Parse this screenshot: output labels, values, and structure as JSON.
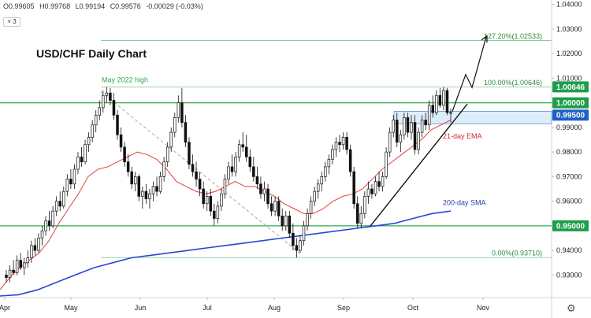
{
  "header": {
    "open": "O0.99605",
    "high": "H0.99768",
    "low": "L0.99194",
    "close": "C0.99576",
    "change": "-0.00029 (-0.03%)",
    "indicator_count": "3"
  },
  "chart_data": {
    "type": "candlestick",
    "title": "USD/CHF Daily Chart",
    "ylim": [
      0.9215,
      1.0405
    ],
    "y_ticks": [
      "0.93000",
      "0.94000",
      "0.95000",
      "0.96000",
      "0.97000",
      "0.98000",
      "0.99000",
      "1.00000",
      "1.01000",
      "1.02000",
      "1.03000",
      "1.04000"
    ],
    "x_ticks": [
      "Apr",
      "May",
      "Jun",
      "Jul",
      "Aug",
      "Sep",
      "Oct",
      "Nov"
    ],
    "price_tags": [
      {
        "label": "1.00646",
        "value": 1.00646,
        "color": "#1e9e4a"
      },
      {
        "label": "1.00000",
        "value": 1.0,
        "color": "#1e9e4a"
      },
      {
        "label": "0.99500",
        "value": 0.995,
        "color": "#1f5fc6"
      },
      {
        "label": "0.95000",
        "value": 0.95,
        "color": "#1e9e4a"
      }
    ],
    "horizontal_levels": [
      {
        "value": 1.0,
        "color": "#2ca84e"
      },
      {
        "value": 0.95,
        "color": "#2ca84e"
      }
    ],
    "fibonacci": [
      {
        "label": "127.20%(1.02533)",
        "value": 1.02533
      },
      {
        "label": "100.00%(1.00646)",
        "value": 1.00646
      },
      {
        "label": "0.00%(0.93710)",
        "value": 0.9371
      }
    ],
    "annotations": [
      {
        "text": "May 2022 high",
        "color": "#2ca84e"
      },
      {
        "text": "21-day EMA",
        "color": "#d62728"
      },
      {
        "text": "200-day SMA",
        "color": "#1f3fb0"
      }
    ],
    "resistance_zone": [
      0.9915,
      0.9965
    ],
    "candles": [
      [
        0.93,
        0.932,
        0.927,
        0.929
      ],
      [
        0.929,
        0.934,
        0.927,
        0.932
      ],
      [
        0.932,
        0.936,
        0.93,
        0.931
      ],
      [
        0.931,
        0.938,
        0.93,
        0.936
      ],
      [
        0.936,
        0.939,
        0.932,
        0.933
      ],
      [
        0.933,
        0.937,
        0.93,
        0.935
      ],
      [
        0.935,
        0.94,
        0.933,
        0.937
      ],
      [
        0.937,
        0.944,
        0.935,
        0.942
      ],
      [
        0.942,
        0.945,
        0.938,
        0.94
      ],
      [
        0.94,
        0.947,
        0.939,
        0.945
      ],
      [
        0.945,
        0.95,
        0.942,
        0.948
      ],
      [
        0.948,
        0.954,
        0.946,
        0.952
      ],
      [
        0.952,
        0.956,
        0.948,
        0.95
      ],
      [
        0.95,
        0.958,
        0.949,
        0.956
      ],
      [
        0.956,
        0.962,
        0.954,
        0.96
      ],
      [
        0.96,
        0.964,
        0.956,
        0.958
      ],
      [
        0.958,
        0.966,
        0.957,
        0.964
      ],
      [
        0.964,
        0.971,
        0.962,
        0.969
      ],
      [
        0.969,
        0.973,
        0.965,
        0.967
      ],
      [
        0.967,
        0.975,
        0.965,
        0.973
      ],
      [
        0.973,
        0.98,
        0.971,
        0.978
      ],
      [
        0.978,
        0.982,
        0.974,
        0.976
      ],
      [
        0.976,
        0.985,
        0.975,
        0.983
      ],
      [
        0.983,
        0.988,
        0.98,
        0.986
      ],
      [
        0.986,
        0.993,
        0.984,
        0.991
      ],
      [
        0.991,
        0.997,
        0.988,
        0.995
      ],
      [
        0.995,
        1.001,
        0.993,
        0.998
      ],
      [
        0.998,
        1.005,
        0.996,
        1.003
      ],
      [
        1.003,
        1.0064,
        1.0,
        1.004
      ],
      [
        1.004,
        1.006,
        0.999,
        1.001
      ],
      [
        1.001,
        1.004,
        0.993,
        0.995
      ],
      [
        0.995,
        0.997,
        0.985,
        0.987
      ],
      [
        0.987,
        0.99,
        0.98,
        0.982
      ],
      [
        0.982,
        0.984,
        0.974,
        0.976
      ],
      [
        0.976,
        0.979,
        0.97,
        0.972
      ],
      [
        0.972,
        0.974,
        0.965,
        0.967
      ],
      [
        0.967,
        0.972,
        0.964,
        0.97
      ],
      [
        0.97,
        0.971,
        0.96,
        0.962
      ],
      [
        0.962,
        0.966,
        0.957,
        0.964
      ],
      [
        0.964,
        0.967,
        0.959,
        0.961
      ],
      [
        0.961,
        0.965,
        0.957,
        0.963
      ],
      [
        0.963,
        0.968,
        0.96,
        0.966
      ],
      [
        0.966,
        0.97,
        0.962,
        0.964
      ],
      [
        0.964,
        0.972,
        0.963,
        0.97
      ],
      [
        0.97,
        0.978,
        0.968,
        0.976
      ],
      [
        0.976,
        0.984,
        0.974,
        0.982
      ],
      [
        0.982,
        0.99,
        0.98,
        0.988
      ],
      [
        0.988,
        0.996,
        0.986,
        0.994
      ],
      [
        0.994,
        1.003,
        0.992,
        1.0
      ],
      [
        1.0,
        1.006,
        0.99,
        0.992
      ],
      [
        0.992,
        0.995,
        0.982,
        0.984
      ],
      [
        0.984,
        0.986,
        0.973,
        0.975
      ],
      [
        0.975,
        0.979,
        0.97,
        0.972
      ],
      [
        0.972,
        0.976,
        0.966,
        0.969
      ],
      [
        0.969,
        0.972,
        0.962,
        0.965
      ],
      [
        0.965,
        0.968,
        0.957,
        0.959
      ],
      [
        0.959,
        0.964,
        0.956,
        0.962
      ],
      [
        0.962,
        0.965,
        0.954,
        0.956
      ],
      [
        0.956,
        0.959,
        0.95,
        0.953
      ],
      [
        0.953,
        0.96,
        0.951,
        0.958
      ],
      [
        0.958,
        0.965,
        0.956,
        0.963
      ],
      [
        0.963,
        0.971,
        0.961,
        0.969
      ],
      [
        0.969,
        0.976,
        0.967,
        0.974
      ],
      [
        0.974,
        0.979,
        0.97,
        0.972
      ],
      [
        0.972,
        0.98,
        0.97,
        0.978
      ],
      [
        0.978,
        0.985,
        0.976,
        0.983
      ],
      [
        0.983,
        0.988,
        0.98,
        0.982
      ],
      [
        0.982,
        0.987,
        0.976,
        0.978
      ],
      [
        0.978,
        0.981,
        0.972,
        0.974
      ],
      [
        0.974,
        0.978,
        0.968,
        0.97
      ],
      [
        0.97,
        0.974,
        0.965,
        0.967
      ],
      [
        0.967,
        0.97,
        0.961,
        0.963
      ],
      [
        0.963,
        0.968,
        0.96,
        0.965
      ],
      [
        0.965,
        0.967,
        0.957,
        0.959
      ],
      [
        0.959,
        0.962,
        0.954,
        0.956
      ],
      [
        0.956,
        0.962,
        0.954,
        0.96
      ],
      [
        0.96,
        0.962,
        0.952,
        0.954
      ],
      [
        0.954,
        0.957,
        0.948,
        0.95
      ],
      [
        0.95,
        0.956,
        0.948,
        0.954
      ],
      [
        0.954,
        0.956,
        0.945,
        0.947
      ],
      [
        0.947,
        0.951,
        0.94,
        0.942
      ],
      [
        0.942,
        0.945,
        0.9371,
        0.94
      ],
      [
        0.94,
        0.946,
        0.939,
        0.944
      ],
      [
        0.944,
        0.952,
        0.942,
        0.95
      ],
      [
        0.95,
        0.957,
        0.948,
        0.955
      ],
      [
        0.955,
        0.962,
        0.953,
        0.96
      ],
      [
        0.96,
        0.966,
        0.958,
        0.964
      ],
      [
        0.964,
        0.969,
        0.961,
        0.967
      ],
      [
        0.967,
        0.972,
        0.964,
        0.97
      ],
      [
        0.97,
        0.976,
        0.968,
        0.974
      ],
      [
        0.974,
        0.979,
        0.971,
        0.977
      ],
      [
        0.977,
        0.983,
        0.975,
        0.981
      ],
      [
        0.981,
        0.986,
        0.978,
        0.984
      ],
      [
        0.984,
        0.987,
        0.98,
        0.983
      ],
      [
        0.983,
        0.988,
        0.981,
        0.986
      ],
      [
        0.986,
        0.988,
        0.979,
        0.981
      ],
      [
        0.981,
        0.983,
        0.97,
        0.972
      ],
      [
        0.972,
        0.974,
        0.957,
        0.959
      ],
      [
        0.959,
        0.962,
        0.949,
        0.951
      ],
      [
        0.951,
        0.958,
        0.949,
        0.955
      ],
      [
        0.955,
        0.964,
        0.953,
        0.962
      ],
      [
        0.962,
        0.968,
        0.959,
        0.965
      ],
      [
        0.965,
        0.967,
        0.961,
        0.963
      ],
      [
        0.963,
        0.97,
        0.962,
        0.968
      ],
      [
        0.968,
        0.972,
        0.964,
        0.966
      ],
      [
        0.966,
        0.972,
        0.964,
        0.97
      ],
      [
        0.97,
        0.982,
        0.969,
        0.98
      ],
      [
        0.98,
        0.99,
        0.978,
        0.988
      ],
      [
        0.988,
        0.995,
        0.986,
        0.993
      ],
      [
        0.993,
        0.996,
        0.982,
        0.984
      ],
      [
        0.984,
        0.989,
        0.98,
        0.987
      ],
      [
        0.987,
        0.996,
        0.985,
        0.994
      ],
      [
        0.994,
        0.996,
        0.986,
        0.988
      ],
      [
        0.988,
        0.995,
        0.985,
        0.992
      ],
      [
        0.992,
        0.995,
        0.979,
        0.981
      ],
      [
        0.981,
        0.99,
        0.979,
        0.988
      ],
      [
        0.988,
        0.995,
        0.986,
        0.993
      ],
      [
        0.993,
        0.996,
        0.989,
        0.991
      ],
      [
        0.991,
        1.001,
        0.989,
        0.999
      ],
      [
        0.999,
        1.003,
        0.994,
        0.996
      ],
      [
        0.996,
        1.005,
        0.995,
        1.003
      ],
      [
        1.003,
        1.006,
        0.998,
        0.999
      ],
      [
        0.999,
        1.0064,
        0.997,
        1.005
      ],
      [
        1.005,
        1.006,
        0.995,
        0.996
      ],
      [
        0.99605,
        0.99768,
        0.99194,
        0.99576
      ]
    ],
    "ema21": [
      0.924,
      0.929,
      0.933,
      0.936,
      0.939,
      0.944,
      0.951,
      0.957,
      0.963,
      0.97,
      0.973,
      0.974,
      0.976,
      0.978,
      0.98,
      0.979,
      0.977,
      0.973,
      0.968,
      0.966,
      0.964,
      0.963,
      0.964,
      0.966,
      0.968,
      0.966,
      0.966,
      0.964,
      0.962,
      0.959,
      0.957,
      0.955,
      0.955,
      0.957,
      0.96,
      0.962,
      0.963,
      0.965,
      0.969,
      0.973,
      0.976,
      0.979,
      0.982,
      0.985,
      0.989,
      0.991,
      0.993
    ],
    "sma200": [
      0.9215,
      0.922,
      0.924,
      0.927,
      0.93,
      0.933,
      0.935,
      0.937,
      0.938,
      0.939,
      0.94,
      0.941,
      0.942,
      0.943,
      0.944,
      0.945,
      0.946,
      0.947,
      0.948,
      0.949,
      0.95,
      0.951,
      0.953,
      0.955,
      0.956
    ]
  }
}
